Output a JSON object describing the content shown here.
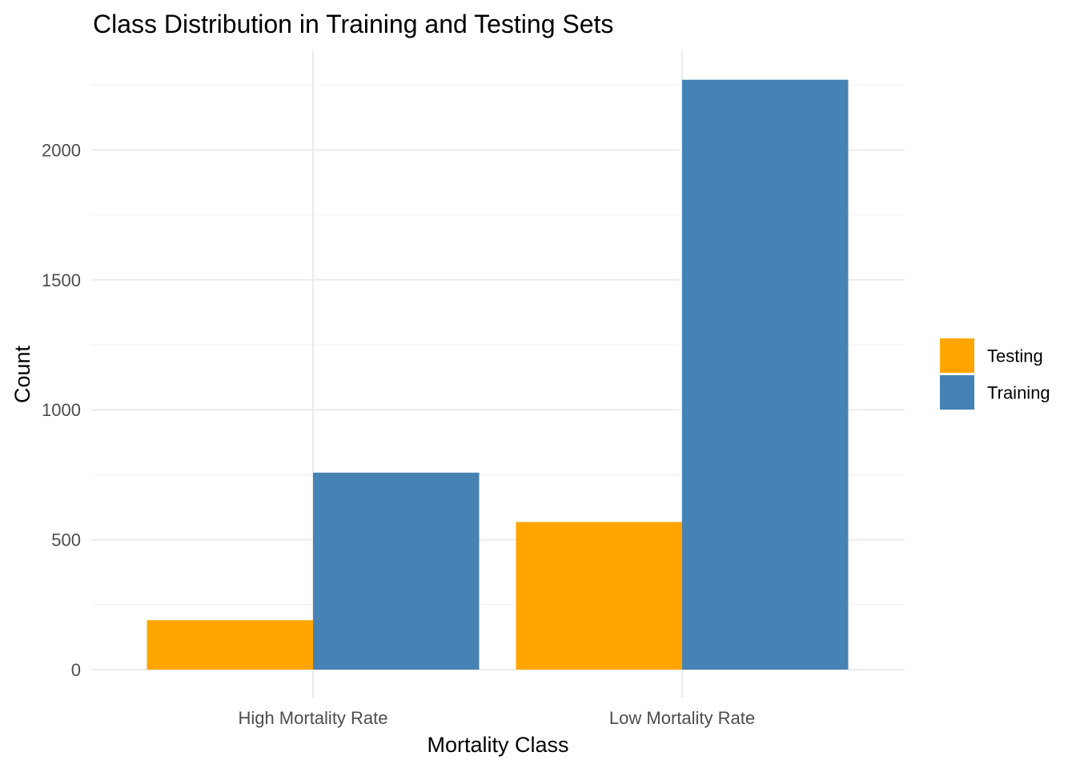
{
  "chart_data": {
    "type": "bar",
    "title": "Class Distribution in Training and Testing Sets",
    "xlabel": "Mortality Class",
    "ylabel": "Count",
    "categories": [
      "High Mortality Rate",
      "Low Mortality Rate"
    ],
    "series": [
      {
        "name": "Testing",
        "values": [
          190,
          568
        ],
        "color": "#FFA500"
      },
      {
        "name": "Training",
        "values": [
          758,
          2270
        ],
        "color": "#4682B4"
      }
    ],
    "yticks": [
      0,
      500,
      1000,
      1500,
      2000
    ],
    "ylim": [
      0,
      2300
    ],
    "grid": true,
    "legend_position": "right",
    "position": "dodge"
  }
}
